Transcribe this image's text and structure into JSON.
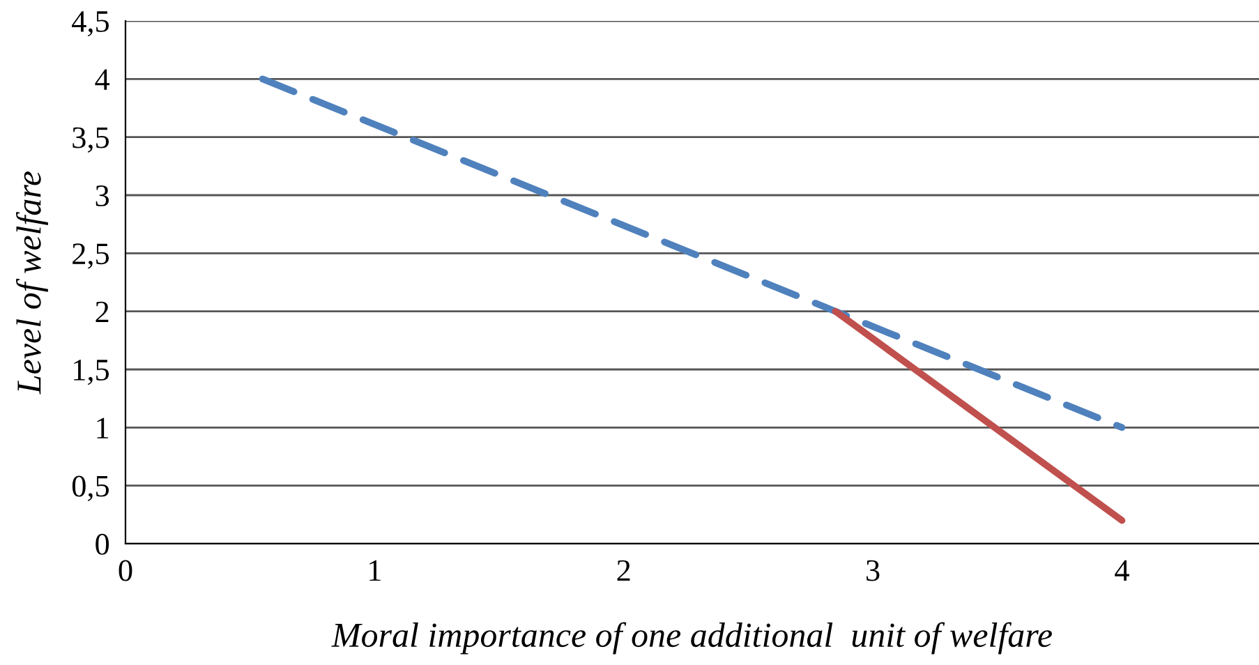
{
  "chart_data": {
    "type": "line",
    "xlabel": "Moral importance of one additional  unit of welfare",
    "ylabel": "Level of welfare",
    "series": [
      {
        "color": "#4f81bd",
        "line_style": "dashed",
        "x": [
          0.55,
          4
        ],
        "values": [
          4,
          1
        ]
      },
      {
        "color": "#c0504d",
        "line_style": "solid",
        "x": [
          2.85,
          4
        ],
        "values": [
          2,
          0.2
        ]
      }
    ],
    "xlim": [
      0,
      4.55
    ],
    "xticks": [
      0,
      1,
      2,
      3,
      4
    ],
    "ylim": [
      0,
      4.5
    ],
    "yticks": [
      0,
      {
        "value": 0.5,
        "label": "0,5"
      },
      1,
      {
        "value": 1.5,
        "label": "1,5"
      },
      2,
      {
        "value": 2.5,
        "label": "2,5"
      },
      3,
      {
        "value": 3.5,
        "label": "3,5"
      },
      4,
      {
        "value": 4.5,
        "label": "4,5"
      }
    ],
    "grid": "y",
    "marker": "none"
  }
}
